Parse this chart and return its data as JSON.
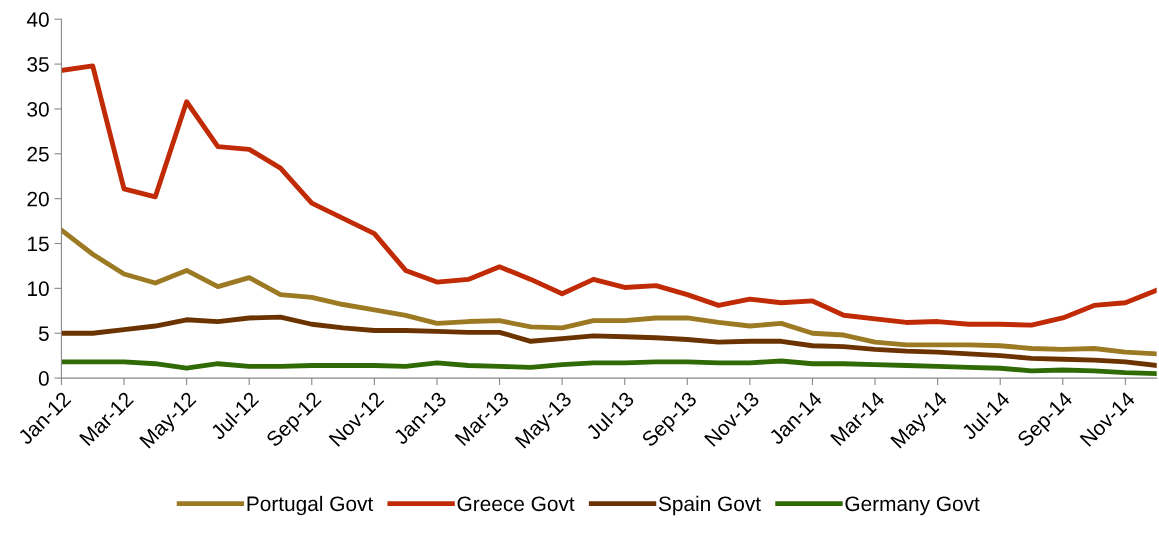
{
  "chart_data": {
    "type": "line",
    "categories": [
      "Jan-12",
      null,
      "Mar-12",
      null,
      "May-12",
      null,
      "Jul-12",
      null,
      "Sep-12",
      null,
      "Nov-12",
      null,
      "Jan-13",
      null,
      "Mar-13",
      null,
      "May-13",
      null,
      "Jul-13",
      null,
      "Sep-13",
      null,
      "Nov-13",
      null,
      "Jan-14",
      null,
      "Mar-14",
      null,
      "May-14",
      null,
      "Jul-14",
      null,
      "Sep-14",
      null,
      "Nov-14",
      null
    ],
    "ylim": [
      0,
      40
    ],
    "yticks": [
      0,
      5,
      10,
      15,
      20,
      25,
      30,
      35,
      40
    ],
    "grid": false,
    "legend": "bottom",
    "marker": "none",
    "line_style": "solid",
    "series": [
      {
        "name": "Portugal Govt",
        "color": "#9c7a23",
        "values": [
          16.5,
          13.8,
          11.6,
          10.6,
          12.0,
          10.2,
          11.2,
          9.3,
          9.0,
          8.2,
          7.6,
          7.0,
          6.1,
          6.3,
          6.4,
          5.7,
          5.6,
          6.4,
          6.4,
          6.7,
          6.7,
          6.2,
          5.8,
          6.1,
          5.0,
          4.8,
          4.0,
          3.7,
          3.7,
          3.7,
          3.6,
          3.3,
          3.2,
          3.3,
          2.9,
          2.7
        ]
      },
      {
        "name": "Greece Govt",
        "color": "#c02a05",
        "values": [
          34.3,
          34.8,
          21.1,
          20.2,
          30.8,
          25.8,
          25.5,
          23.4,
          19.5,
          17.8,
          16.1,
          12.0,
          10.7,
          11.0,
          12.4,
          11.0,
          9.4,
          11.0,
          10.1,
          10.3,
          9.3,
          8.1,
          8.8,
          8.4,
          8.6,
          7.0,
          6.6,
          6.2,
          6.3,
          6.0,
          6.0,
          5.9,
          6.7,
          8.1,
          8.4,
          9.8
        ]
      },
      {
        "name": "Spain Govt",
        "color": "#6b3300",
        "values": [
          5.0,
          5.0,
          5.4,
          5.8,
          6.5,
          6.3,
          6.7,
          6.8,
          6.0,
          5.6,
          5.3,
          5.3,
          5.2,
          5.1,
          5.1,
          4.1,
          4.4,
          4.7,
          4.6,
          4.5,
          4.3,
          4.0,
          4.1,
          4.1,
          3.6,
          3.5,
          3.2,
          3.0,
          2.9,
          2.7,
          2.5,
          2.2,
          2.1,
          2.0,
          1.8,
          1.4
        ]
      },
      {
        "name": "Germany Govt",
        "color": "#2f6a05",
        "values": [
          1.8,
          1.8,
          1.8,
          1.6,
          1.1,
          1.6,
          1.3,
          1.3,
          1.4,
          1.4,
          1.4,
          1.3,
          1.7,
          1.4,
          1.3,
          1.2,
          1.5,
          1.7,
          1.7,
          1.8,
          1.8,
          1.7,
          1.7,
          1.9,
          1.6,
          1.6,
          1.5,
          1.4,
          1.3,
          1.2,
          1.1,
          0.8,
          0.9,
          0.8,
          0.6,
          0.5
        ]
      }
    ]
  }
}
